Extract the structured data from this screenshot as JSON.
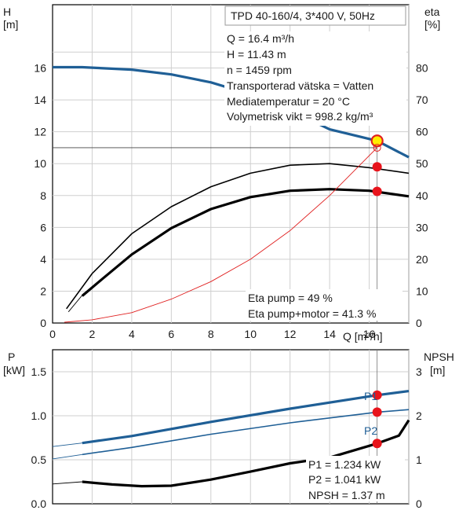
{
  "chart_data": [
    {
      "type": "line",
      "panel": "head-efficiency",
      "title": "TPD 40-160/4, 3*400 V, 50Hz",
      "xlabel": "Q [m³/h]",
      "ylabel_left": "H",
      "ylabel_left_unit": "[m]",
      "ylabel_right": "eta",
      "ylabel_right_unit": "[%]",
      "xlim": [
        0,
        18
      ],
      "ylim_left": [
        0,
        18
      ],
      "ylim_right": [
        0,
        90
      ],
      "x_ticks": [
        0,
        2,
        4,
        6,
        8,
        10,
        12,
        14,
        16
      ],
      "y_left_ticks": [
        0,
        2,
        4,
        6,
        8,
        10,
        12,
        14,
        16
      ],
      "y_right_ticks": [
        0,
        10,
        20,
        30,
        40,
        50,
        60,
        70,
        80
      ],
      "x_tick_labels": [
        "0",
        "2",
        "4",
        "6",
        "8",
        "10",
        "12",
        "14",
        "16"
      ],
      "y_left_tick_labels": [
        "0",
        "2",
        "4",
        "6",
        "8",
        "10",
        "12",
        "14",
        "16"
      ],
      "y_right_tick_labels": [
        "0",
        "10",
        "20",
        "30",
        "40",
        "50",
        "60",
        "70",
        "80"
      ],
      "grid": true,
      "series": [
        {
          "axis": "left",
          "color": "#1f5f96",
          "points": [
            [
              0,
              16.05
            ],
            [
              1.5,
              16.05
            ],
            [
              4,
              15.9
            ],
            [
              6,
              15.6
            ],
            [
              8,
              15.1
            ],
            [
              10,
              14.35
            ],
            [
              12,
              13.35
            ],
            [
              14,
              12.15
            ],
            [
              16.4,
              11.43
            ],
            [
              18,
              10.4
            ]
          ]
        },
        {
          "axis": "left",
          "color": "#000000",
          "points": [
            [
              0.7,
              0.9
            ],
            [
              2,
              3.1
            ],
            [
              4,
              5.6
            ],
            [
              6,
              7.3
            ],
            [
              8,
              8.55
            ],
            [
              10,
              9.4
            ],
            [
              12,
              9.9
            ],
            [
              14,
              10.0
            ],
            [
              16,
              9.75
            ],
            [
              18,
              9.4
            ]
          ]
        },
        {
          "axis": "left",
          "color": "#000000",
          "points": [
            [
              1.5,
              1.7
            ],
            [
              2.5,
              2.75
            ],
            [
              4,
              4.3
            ],
            [
              6,
              5.95
            ],
            [
              8,
              7.15
            ],
            [
              10,
              7.9
            ],
            [
              12,
              8.3
            ],
            [
              14,
              8.4
            ],
            [
              16,
              8.3
            ],
            [
              18,
              7.95
            ]
          ]
        },
        {
          "axis": "left",
          "color": "#e02020",
          "points": [
            [
              0.6,
              0.05
            ],
            [
              2,
              0.2
            ],
            [
              4,
              0.65
            ],
            [
              6,
              1.5
            ],
            [
              8,
              2.6
            ],
            [
              10,
              4.0
            ],
            [
              12,
              5.8
            ],
            [
              14,
              8.0
            ],
            [
              16.4,
              11.0
            ]
          ]
        }
      ],
      "duty_point": {
        "Q": 16.4,
        "H": 11.43
      },
      "system_curve_end": {
        "Q": 16.4,
        "H": 11.0
      },
      "markers": [
        {
          "axis": "left",
          "Q": 16.4,
          "value": 11.43,
          "kind": "duty-point"
        },
        {
          "axis": "left",
          "Q": 16.4,
          "value": 11.0,
          "kind": "system-curve-point"
        },
        {
          "axis": "right",
          "Q": 16.4,
          "value": 49,
          "kind": "efficiency-pump"
        },
        {
          "axis": "right",
          "Q": 16.4,
          "value": 41.3,
          "kind": "efficiency-pump-motor"
        }
      ],
      "info_lines": [
        "Q = 16.4 m³/h",
        "H = 11.43 m",
        "n = 1459 rpm",
        "Transporterad vätska = Vatten",
        "Mediatemperatur = 20 °C",
        "Volymetrisk vikt = 998.2 kg/m³"
      ],
      "eff_lines": [
        "Eta pump = 49 %",
        "Eta pump+motor = 41.3 %"
      ]
    },
    {
      "type": "line",
      "panel": "power-npsh",
      "xlim": [
        0,
        18
      ],
      "ylim_left": [
        0,
        1.75
      ],
      "ylim_right": [
        0,
        3.5
      ],
      "ylabel_left": "P",
      "ylabel_left_unit": "[kW]",
      "ylabel_right": "NPSH",
      "ylabel_right_unit": "[m]",
      "y_left_ticks": [
        0,
        0.5,
        1.0,
        1.5
      ],
      "y_right_ticks": [
        0,
        1,
        2,
        3
      ],
      "y_left_tick_labels": [
        "0.0",
        "0.5",
        "1.0",
        "1.5"
      ],
      "y_right_tick_labels": [
        "0",
        "1",
        "2",
        "3"
      ],
      "grid": true,
      "series": [
        {
          "name": "P1",
          "axis": "left",
          "color": "#1f5f96",
          "points": [
            [
              0,
              0.65
            ],
            [
              1.5,
              0.69
            ],
            [
              4,
              0.77
            ],
            [
              8,
              0.93
            ],
            [
              12,
              1.08
            ],
            [
              16.4,
              1.234
            ],
            [
              18,
              1.28
            ]
          ]
        },
        {
          "name": "P2",
          "axis": "left",
          "color": "#1f5f96",
          "points": [
            [
              0,
              0.51
            ],
            [
              1.5,
              0.56
            ],
            [
              4,
              0.64
            ],
            [
              8,
              0.79
            ],
            [
              12,
              0.92
            ],
            [
              16.4,
              1.041
            ],
            [
              18,
              1.07
            ]
          ]
        },
        {
          "axis": "right",
          "color": "#000000",
          "points": [
            [
              0,
              0.45
            ],
            [
              1.5,
              0.5
            ],
            [
              3,
              0.44
            ],
            [
              4.5,
              0.4
            ],
            [
              6,
              0.41
            ],
            [
              8,
              0.55
            ],
            [
              10,
              0.73
            ],
            [
              12,
              0.92
            ],
            [
              14,
              1.05
            ],
            [
              16.4,
              1.37
            ],
            [
              17.5,
              1.55
            ],
            [
              18,
              1.9
            ]
          ]
        }
      ],
      "markers": [
        {
          "axis": "left",
          "Q": 16.4,
          "value": 1.234,
          "kind": "P1"
        },
        {
          "axis": "left",
          "Q": 16.4,
          "value": 1.041,
          "kind": "P2"
        },
        {
          "axis": "right",
          "Q": 16.4,
          "value": 1.37,
          "kind": "NPSH"
        }
      ],
      "curve_labels": [
        "P1",
        "P2"
      ],
      "info_lines": [
        "P1 = 1.234 kW",
        "P2 = 1.041 kW",
        "NPSH = 1.37 m"
      ]
    }
  ]
}
